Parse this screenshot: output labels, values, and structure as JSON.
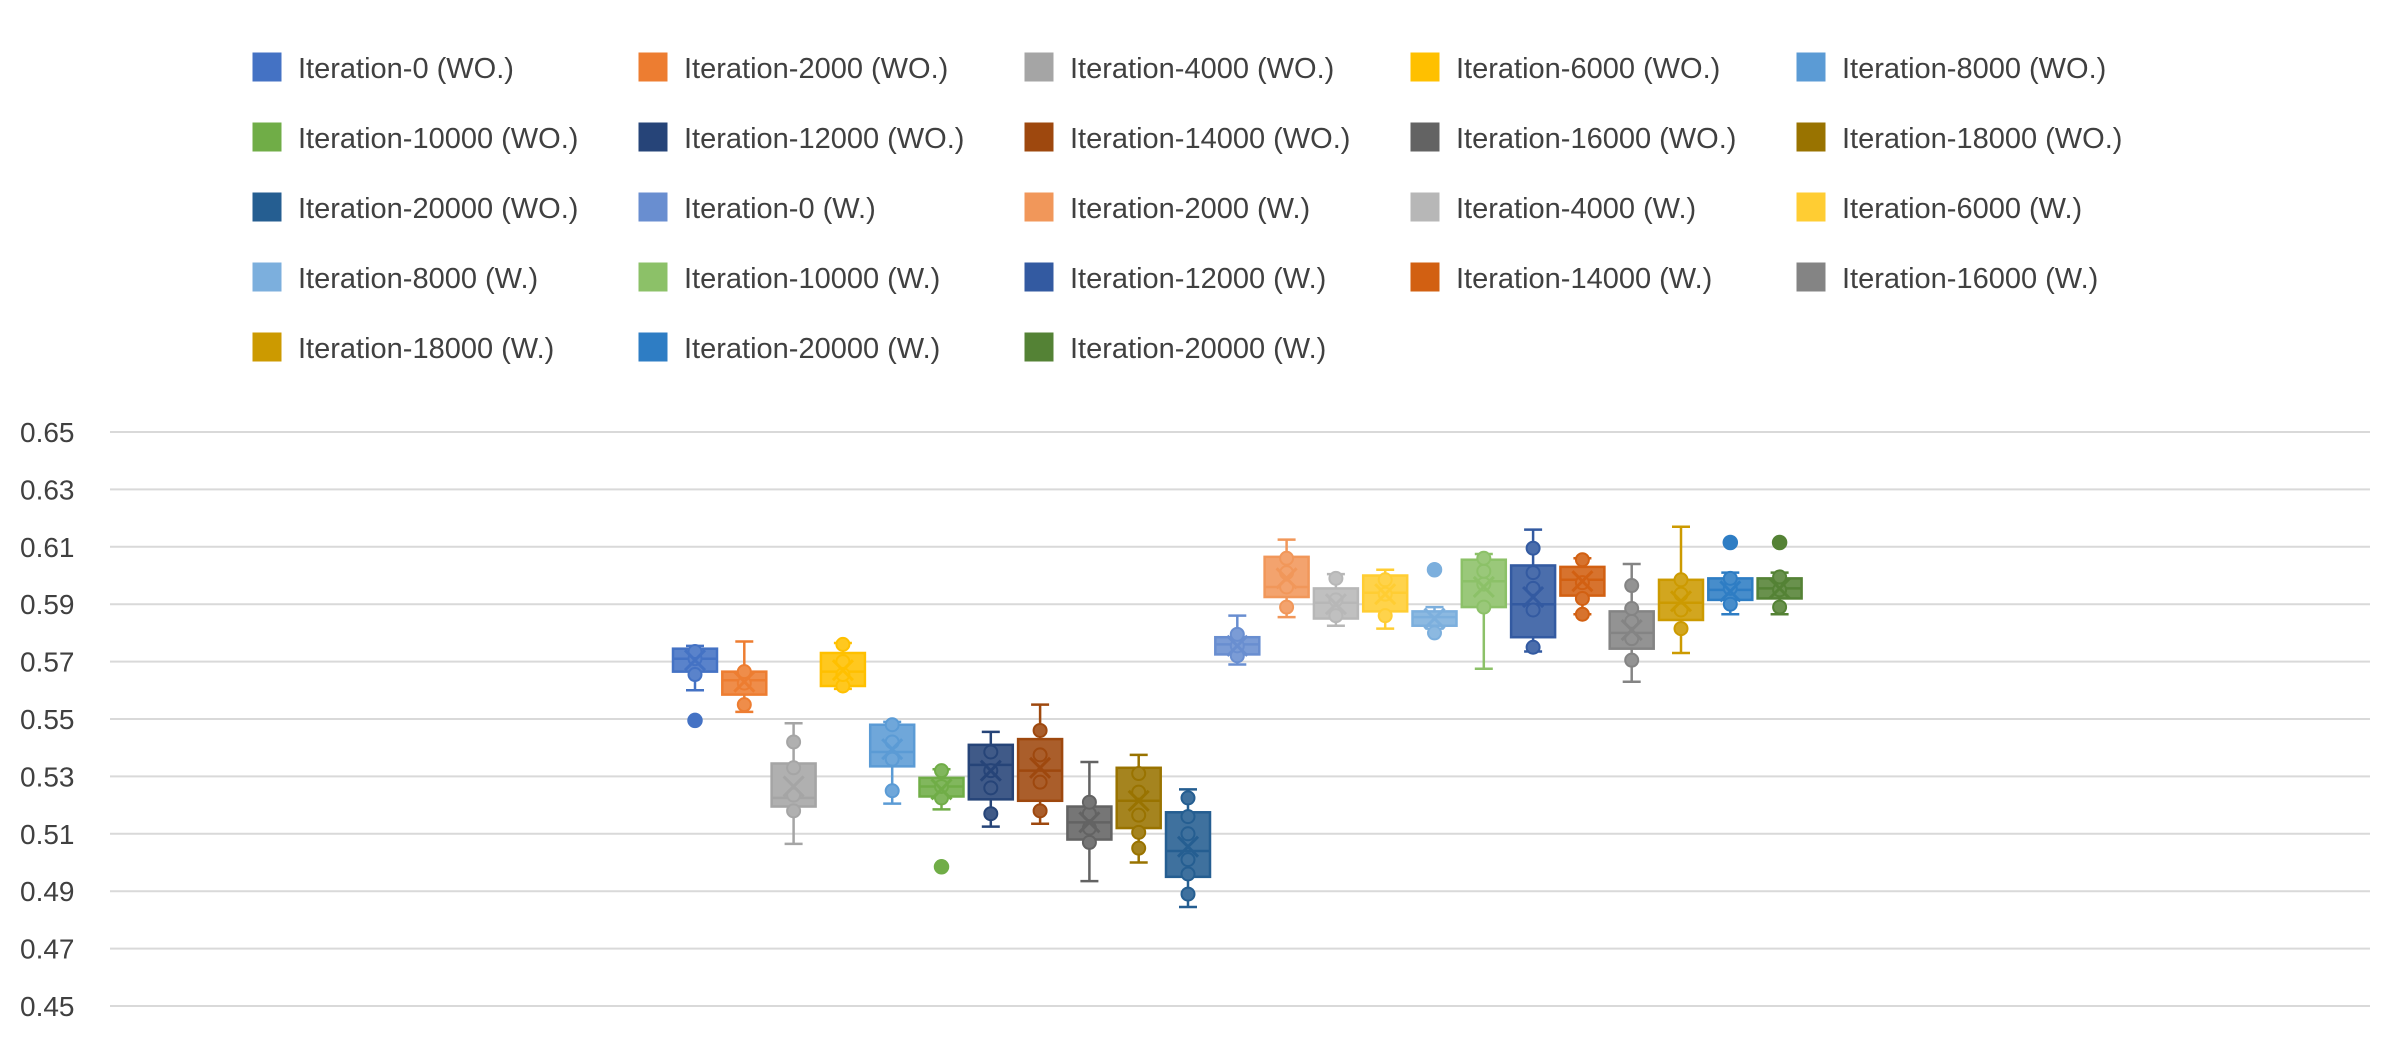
{
  "chart_data": {
    "type": "box",
    "title": "",
    "xlabel": "",
    "ylabel": "",
    "ylim": [
      0.45,
      0.65
    ],
    "yticks": [
      "0.45",
      "0.47",
      "0.49",
      "0.51",
      "0.53",
      "0.55",
      "0.57",
      "0.59",
      "0.61",
      "0.63",
      "0.65"
    ],
    "grid": true,
    "legend_position": "top",
    "series": [
      {
        "name": "Iteration-0 (WO.)",
        "color": "#4472C4",
        "min": 0.56,
        "q1": 0.5665,
        "median": 0.571,
        "q3": 0.5745,
        "max": 0.5755,
        "mean": 0.5705,
        "outliers": [
          0.5495
        ],
        "points": [
          0.5655,
          0.571,
          0.5735
        ]
      },
      {
        "name": "Iteration-2000 (WO.)",
        "color": "#ED7D31",
        "min": 0.5525,
        "q1": 0.5585,
        "median": 0.5635,
        "q3": 0.5665,
        "max": 0.577,
        "mean": 0.563,
        "outliers": [],
        "points": [
          0.555,
          0.5625,
          0.5665
        ]
      },
      {
        "name": "Iteration-4000 (WO.)",
        "color": "#A5A5A5",
        "min": 0.5065,
        "q1": 0.5195,
        "median": 0.5225,
        "q3": 0.5345,
        "max": 0.5485,
        "mean": 0.5265,
        "outliers": [],
        "points": [
          0.518,
          0.5235,
          0.533,
          0.542
        ]
      },
      {
        "name": "Iteration-6000 (WO.)",
        "color": "#FFC000",
        "min": 0.5605,
        "q1": 0.5615,
        "median": 0.5665,
        "q3": 0.573,
        "max": 0.5765,
        "mean": 0.567,
        "outliers": [],
        "points": [
          0.5615,
          0.5655,
          0.57,
          0.576
        ]
      },
      {
        "name": "Iteration-8000 (WO.)",
        "color": "#5B9BD5",
        "min": 0.5205,
        "q1": 0.5335,
        "median": 0.5385,
        "q3": 0.548,
        "max": 0.549,
        "mean": 0.5395,
        "outliers": [],
        "points": [
          0.525,
          0.536,
          0.542,
          0.548
        ]
      },
      {
        "name": "Iteration-10000 (WO.)",
        "color": "#70AD47",
        "min": 0.5185,
        "q1": 0.523,
        "median": 0.5265,
        "q3": 0.5295,
        "max": 0.5325,
        "mean": 0.5255,
        "outliers": [
          0.4985
        ],
        "points": [
          0.5225,
          0.5265,
          0.532
        ]
      },
      {
        "name": "Iteration-12000 (WO.)",
        "color": "#264478",
        "min": 0.5125,
        "q1": 0.522,
        "median": 0.534,
        "q3": 0.541,
        "max": 0.5455,
        "mean": 0.532,
        "outliers": [],
        "points": [
          0.517,
          0.526,
          0.532,
          0.5385
        ]
      },
      {
        "name": "Iteration-14000 (WO.)",
        "color": "#9E480E",
        "min": 0.5135,
        "q1": 0.5215,
        "median": 0.532,
        "q3": 0.543,
        "max": 0.555,
        "mean": 0.533,
        "outliers": [],
        "points": [
          0.518,
          0.528,
          0.5375,
          0.546
        ]
      },
      {
        "name": "Iteration-16000 (WO.)",
        "color": "#636363",
        "min": 0.4935,
        "q1": 0.508,
        "median": 0.514,
        "q3": 0.5195,
        "max": 0.535,
        "mean": 0.514,
        "outliers": [],
        "points": [
          0.507,
          0.512,
          0.517,
          0.521
        ]
      },
      {
        "name": "Iteration-18000 (WO.)",
        "color": "#997300",
        "min": 0.5,
        "q1": 0.512,
        "median": 0.5215,
        "q3": 0.533,
        "max": 0.5375,
        "mean": 0.5215,
        "outliers": [],
        "points": [
          0.505,
          0.5105,
          0.5165,
          0.5245,
          0.531
        ]
      },
      {
        "name": "Iteration-20000 (WO.)",
        "color": "#255E91",
        "min": 0.4845,
        "q1": 0.495,
        "median": 0.504,
        "q3": 0.5175,
        "max": 0.5255,
        "mean": 0.5055,
        "outliers": [],
        "points": [
          0.489,
          0.496,
          0.501,
          0.51,
          0.516,
          0.5225
        ]
      },
      {
        "name": "Iteration-0 (W.)",
        "color": "#698ED0",
        "min": 0.569,
        "q1": 0.5725,
        "median": 0.576,
        "q3": 0.5785,
        "max": 0.586,
        "mean": 0.5755,
        "outliers": [],
        "points": [
          0.572,
          0.5755,
          0.5795
        ]
      },
      {
        "name": "Iteration-2000 (W.)",
        "color": "#F1975A",
        "min": 0.5855,
        "q1": 0.5925,
        "median": 0.596,
        "q3": 0.6065,
        "max": 0.6125,
        "mean": 0.599,
        "outliers": [],
        "points": [
          0.589,
          0.596,
          0.601,
          0.606
        ]
      },
      {
        "name": "Iteration-4000 (W.)",
        "color": "#B7B7B7",
        "min": 0.5825,
        "q1": 0.585,
        "median": 0.5905,
        "q3": 0.5955,
        "max": 0.6005,
        "mean": 0.59,
        "outliers": [],
        "points": [
          0.586,
          0.5915,
          0.599
        ]
      },
      {
        "name": "Iteration-6000 (W.)",
        "color": "#FFCD33",
        "min": 0.5815,
        "q1": 0.5875,
        "median": 0.594,
        "q3": 0.6,
        "max": 0.602,
        "mean": 0.5935,
        "outliers": [],
        "points": [
          0.586,
          0.5935,
          0.5985
        ]
      },
      {
        "name": "Iteration-8000 (W.)",
        "color": "#7CAFDD",
        "min": 0.5815,
        "q1": 0.5825,
        "median": 0.5855,
        "q3": 0.5875,
        "max": 0.589,
        "mean": 0.585,
        "outliers": [
          0.602
        ],
        "points": [
          0.58
        ]
      },
      {
        "name": "Iteration-10000 (W.)",
        "color": "#8CC168",
        "min": 0.5675,
        "q1": 0.589,
        "median": 0.598,
        "q3": 0.6055,
        "max": 0.6075,
        "mean": 0.596,
        "outliers": [],
        "points": [
          0.589,
          0.597,
          0.6015,
          0.606
        ]
      },
      {
        "name": "Iteration-12000 (W.)",
        "color": "#335AA1",
        "min": 0.5735,
        "q1": 0.5785,
        "median": 0.59,
        "q3": 0.6035,
        "max": 0.616,
        "mean": 0.5925,
        "outliers": [],
        "points": [
          0.575,
          0.588,
          0.5955,
          0.601,
          0.6095
        ]
      },
      {
        "name": "Iteration-14000 (W.)",
        "color": "#D26012",
        "min": 0.5865,
        "q1": 0.593,
        "median": 0.5985,
        "q3": 0.603,
        "max": 0.606,
        "mean": 0.598,
        "outliers": [],
        "points": [
          0.5865,
          0.592,
          0.5975,
          0.6055
        ]
      },
      {
        "name": "Iteration-16000 (W.)",
        "color": "#848484",
        "min": 0.563,
        "q1": 0.5745,
        "median": 0.58,
        "q3": 0.5875,
        "max": 0.604,
        "mean": 0.581,
        "outliers": [],
        "points": [
          0.5705,
          0.578,
          0.584,
          0.5885,
          0.5965
        ]
      },
      {
        "name": "Iteration-18000 (W.)",
        "color": "#CC9A00",
        "min": 0.573,
        "q1": 0.5845,
        "median": 0.5905,
        "q3": 0.5985,
        "max": 0.617,
        "mean": 0.591,
        "outliers": [],
        "points": [
          0.5815,
          0.588,
          0.5935,
          0.5985
        ]
      },
      {
        "name": "Iteration-20000 (W.)",
        "color": "#2E7DC4",
        "min": 0.5865,
        "q1": 0.5915,
        "median": 0.595,
        "q3": 0.599,
        "max": 0.601,
        "mean": 0.5945,
        "outliers": [
          0.6115
        ],
        "points": [
          0.59,
          0.5955,
          0.599
        ]
      },
      {
        "name": "Iteration-20000 (W.)",
        "color": "#548235",
        "min": 0.5865,
        "q1": 0.592,
        "median": 0.5955,
        "q3": 0.599,
        "max": 0.601,
        "mean": 0.5955,
        "outliers": [
          0.6115
        ],
        "points": [
          0.589,
          0.595,
          0.5995
        ]
      }
    ]
  }
}
